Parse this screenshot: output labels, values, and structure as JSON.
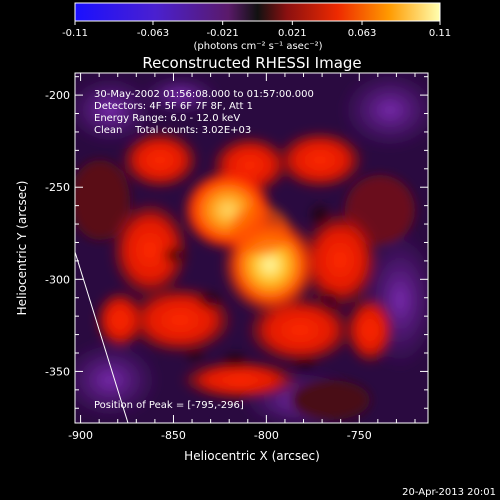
{
  "colorbar": {
    "ticks": [
      "-0.11",
      "-0.063",
      "-0.021",
      "0.021",
      "0.063",
      "0.11"
    ],
    "tick_values": [
      -0.11,
      -0.063,
      -0.021,
      0.021,
      0.063,
      0.11
    ],
    "range": [
      -0.11,
      0.11
    ],
    "units": "(photons cm⁻² s⁻¹ asec⁻²)"
  },
  "image": {
    "title": "Reconstructed RHESSI Image",
    "info_lines": [
      "30-May-2002 01:56:08.000 to 01:57:00.000",
      "Detectors: 4F 5F 6F 7F 8F, Att 1",
      "Energy Range: 6.0 - 12.0 keV",
      "Clean    Total counts: 3.02E+03"
    ],
    "peak_label": "Position of Peak = [-795,-296]",
    "peak_x": -795,
    "peak_y": -296
  },
  "axes": {
    "x_label": "Heliocentric X (arcsec)",
    "y_label": "Heliocentric Y (arcsec)",
    "x_ticks": [
      "-900",
      "-850",
      "-800",
      "-750"
    ],
    "x_tick_values": [
      -900,
      -850,
      -800,
      -750
    ],
    "y_ticks": [
      "-200",
      "-250",
      "-300",
      "-350"
    ],
    "y_tick_values": [
      -200,
      -250,
      -300,
      -350
    ],
    "x_range": [
      -903,
      -713
    ],
    "y_range": [
      -378,
      -188
    ]
  },
  "footer": {
    "timestamp": "20-Apr-2013 20:01"
  },
  "colors": {
    "background": "#000000",
    "limb_line": "#ffffff",
    "negative": "#1010ff",
    "positive": "#ffff80"
  }
}
